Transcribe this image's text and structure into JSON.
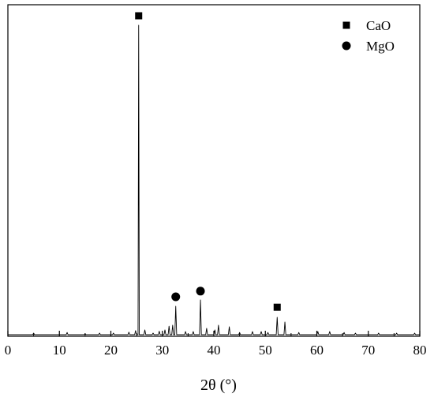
{
  "chart_data": {
    "type": "line",
    "title": "",
    "xlabel": "2θ (°)",
    "ylabel": "",
    "xlim": [
      0,
      80
    ],
    "ylim": [
      0,
      100
    ],
    "x_ticks": [
      "0",
      "10",
      "20",
      "30",
      "40",
      "50",
      "60",
      "70",
      "80"
    ],
    "y_ticks_shown": false,
    "grid": false,
    "legend_position": "top-right",
    "legend": [
      {
        "label": "CaO",
        "marker": "square"
      },
      {
        "label": "MgO",
        "marker": "circle"
      }
    ],
    "series": [
      {
        "color": "#000000",
        "baseline": 0.5,
        "peaks": [
          {
            "x": 5.0,
            "y": 1.0
          },
          {
            "x": 11.5,
            "y": 1.2
          },
          {
            "x": 15.0,
            "y": 0.8
          },
          {
            "x": 17.8,
            "y": 1.0
          },
          {
            "x": 20.5,
            "y": 1.0
          },
          {
            "x": 23.5,
            "y": 1.3
          },
          {
            "x": 24.8,
            "y": 1.8
          },
          {
            "x": 25.4,
            "y": 98.5
          },
          {
            "x": 26.6,
            "y": 2.0
          },
          {
            "x": 28.2,
            "y": 1.0
          },
          {
            "x": 29.4,
            "y": 1.6
          },
          {
            "x": 30.5,
            "y": 2.0
          },
          {
            "x": 31.3,
            "y": 3.2
          },
          {
            "x": 32.0,
            "y": 3.5
          },
          {
            "x": 32.6,
            "y": 9.5
          },
          {
            "x": 34.5,
            "y": 1.5
          },
          {
            "x": 36.0,
            "y": 1.5
          },
          {
            "x": 37.4,
            "y": 11.5
          },
          {
            "x": 38.6,
            "y": 2.5
          },
          {
            "x": 40.2,
            "y": 2.0
          },
          {
            "x": 40.9,
            "y": 3.5
          },
          {
            "x": 43.0,
            "y": 3.0
          },
          {
            "x": 45.0,
            "y": 1.2
          },
          {
            "x": 47.5,
            "y": 1.5
          },
          {
            "x": 49.2,
            "y": 1.5
          },
          {
            "x": 50.5,
            "y": 1.2
          },
          {
            "x": 52.3,
            "y": 6.0
          },
          {
            "x": 53.8,
            "y": 4.5
          },
          {
            "x": 56.5,
            "y": 1.2
          },
          {
            "x": 60.2,
            "y": 1.5
          },
          {
            "x": 62.5,
            "y": 1.5
          },
          {
            "x": 65.3,
            "y": 1.2
          },
          {
            "x": 67.5,
            "y": 1.0
          },
          {
            "x": 72.0,
            "y": 1.0
          },
          {
            "x": 75.5,
            "y": 1.0
          },
          {
            "x": 79.0,
            "y": 1.0
          }
        ]
      }
    ],
    "annotations": [
      {
        "marker": "square",
        "phase": "CaO",
        "x": 25.4,
        "y": 101.5
      },
      {
        "marker": "circle",
        "phase": "MgO",
        "x": 32.6,
        "y": 12.5
      },
      {
        "marker": "circle",
        "phase": "MgO",
        "x": 37.4,
        "y": 14.3
      },
      {
        "marker": "square",
        "phase": "CaO",
        "x": 52.3,
        "y": 9.2
      }
    ]
  }
}
